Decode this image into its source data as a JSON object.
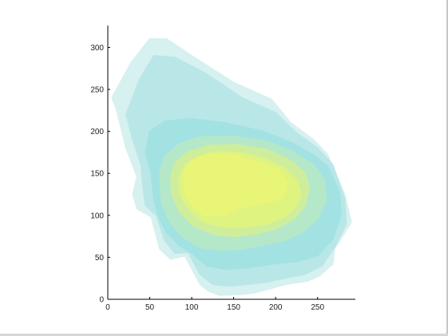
{
  "chart_data": {
    "type": "area",
    "title": "",
    "xlabel": "",
    "ylabel": "",
    "xlim": [
      0,
      295
    ],
    "ylim": [
      0,
      328
    ],
    "x_ticks": [
      0,
      50,
      100,
      150,
      200,
      250
    ],
    "y_ticks": [
      0,
      50,
      100,
      150,
      200,
      250,
      300
    ],
    "grid": false,
    "density_levels": [
      {
        "name": "level-1",
        "color": "#d7f0f0",
        "polygon": [
          [
            5,
            240
          ],
          [
            28,
            282
          ],
          [
            50,
            310
          ],
          [
            70,
            310
          ],
          [
            100,
            290
          ],
          [
            150,
            258
          ],
          [
            195,
            238
          ],
          [
            218,
            210
          ],
          [
            245,
            190
          ],
          [
            262,
            172
          ],
          [
            282,
            125
          ],
          [
            290,
            92
          ],
          [
            270,
            60
          ],
          [
            268,
            42
          ],
          [
            252,
            28
          ],
          [
            238,
            22
          ],
          [
            212,
            18
          ],
          [
            190,
            12
          ],
          [
            175,
            8
          ],
          [
            158,
            6
          ],
          [
            133,
            5
          ],
          [
            120,
            10
          ],
          [
            110,
            18
          ],
          [
            92,
            52
          ],
          [
            75,
            48
          ],
          [
            62,
            60
          ],
          [
            52,
            98
          ],
          [
            35,
            108
          ],
          [
            30,
            125
          ],
          [
            35,
            146
          ],
          [
            22,
            180
          ],
          [
            10,
            228
          ]
        ]
      },
      {
        "name": "level-2",
        "color": "#b9e7e8",
        "polygon": [
          [
            22,
            220
          ],
          [
            38,
            262
          ],
          [
            55,
            290
          ],
          [
            80,
            288
          ],
          [
            115,
            270
          ],
          [
            160,
            240
          ],
          [
            200,
            222
          ],
          [
            225,
            198
          ],
          [
            250,
            180
          ],
          [
            268,
            160
          ],
          [
            282,
            120
          ],
          [
            284,
            90
          ],
          [
            270,
            62
          ],
          [
            255,
            40
          ],
          [
            235,
            30
          ],
          [
            210,
            25
          ],
          [
            185,
            20
          ],
          [
            165,
            18
          ],
          [
            145,
            16
          ],
          [
            125,
            18
          ],
          [
            110,
            30
          ],
          [
            96,
            56
          ],
          [
            80,
            55
          ],
          [
            68,
            70
          ],
          [
            58,
            100
          ],
          [
            45,
            112
          ],
          [
            42,
            135
          ],
          [
            40,
            160
          ],
          [
            30,
            190
          ]
        ]
      },
      {
        "name": "level-3",
        "color": "#a3e2e2",
        "polygon": [
          [
            45,
            175
          ],
          [
            50,
            200
          ],
          [
            68,
            212
          ],
          [
            100,
            215
          ],
          [
            140,
            210
          ],
          [
            185,
            200
          ],
          [
            220,
            186
          ],
          [
            245,
            172
          ],
          [
            262,
            158
          ],
          [
            276,
            128
          ],
          [
            278,
            100
          ],
          [
            268,
            72
          ],
          [
            250,
            52
          ],
          [
            225,
            45
          ],
          [
            195,
            42
          ],
          [
            168,
            38
          ],
          [
            140,
            36
          ],
          [
            118,
            40
          ],
          [
            100,
            55
          ],
          [
            84,
            65
          ],
          [
            70,
            80
          ],
          [
            60,
            100
          ],
          [
            55,
            120
          ],
          [
            52,
            150
          ]
        ]
      },
      {
        "name": "level-4",
        "color": "#b5e8c8",
        "polygon": [
          [
            62,
            150
          ],
          [
            68,
            170
          ],
          [
            85,
            185
          ],
          [
            110,
            193
          ],
          [
            150,
            194
          ],
          [
            190,
            188
          ],
          [
            220,
            176
          ],
          [
            245,
            160
          ],
          [
            258,
            142
          ],
          [
            260,
            118
          ],
          [
            250,
            96
          ],
          [
            232,
            80
          ],
          [
            210,
            70
          ],
          [
            185,
            65
          ],
          [
            160,
            60
          ],
          [
            135,
            58
          ],
          [
            110,
            62
          ],
          [
            90,
            74
          ],
          [
            74,
            92
          ],
          [
            64,
            115
          ]
        ]
      },
      {
        "name": "level-5",
        "color": "#cfee9c",
        "polygon": [
          [
            75,
            145
          ],
          [
            80,
            162
          ],
          [
            95,
            175
          ],
          [
            120,
            183
          ],
          [
            155,
            184
          ],
          [
            190,
            178
          ],
          [
            218,
            165
          ],
          [
            235,
            150
          ],
          [
            240,
            132
          ],
          [
            235,
            112
          ],
          [
            222,
            96
          ],
          [
            200,
            84
          ],
          [
            176,
            78
          ],
          [
            150,
            75
          ],
          [
            125,
            78
          ],
          [
            102,
            88
          ],
          [
            86,
            104
          ],
          [
            77,
            124
          ]
        ]
      },
      {
        "name": "level-6",
        "color": "#dff381",
        "polygon": [
          [
            85,
            145
          ],
          [
            92,
            160
          ],
          [
            108,
            170
          ],
          [
            132,
            176
          ],
          [
            160,
            174
          ],
          [
            190,
            166
          ],
          [
            212,
            155
          ],
          [
            226,
            140
          ],
          [
            230,
            125
          ],
          [
            224,
            110
          ],
          [
            210,
            98
          ],
          [
            190,
            90
          ],
          [
            165,
            86
          ],
          [
            140,
            86
          ],
          [
            115,
            92
          ],
          [
            98,
            106
          ],
          [
            87,
            124
          ]
        ]
      },
      {
        "name": "level-7",
        "color": "#e8f577",
        "polygon": [
          [
            90,
            150
          ],
          [
            100,
            165
          ],
          [
            120,
            173
          ],
          [
            150,
            172
          ],
          [
            172,
            165
          ],
          [
            188,
            160
          ],
          [
            205,
            153
          ],
          [
            215,
            138
          ],
          [
            208,
            120
          ],
          [
            188,
            115
          ],
          [
            168,
            112
          ],
          [
            155,
            108
          ],
          [
            140,
            100
          ],
          [
            115,
            100
          ],
          [
            100,
            112
          ],
          [
            92,
            130
          ]
        ]
      }
    ]
  },
  "colors": {
    "axis": "#000000",
    "background": "#ffffff"
  }
}
